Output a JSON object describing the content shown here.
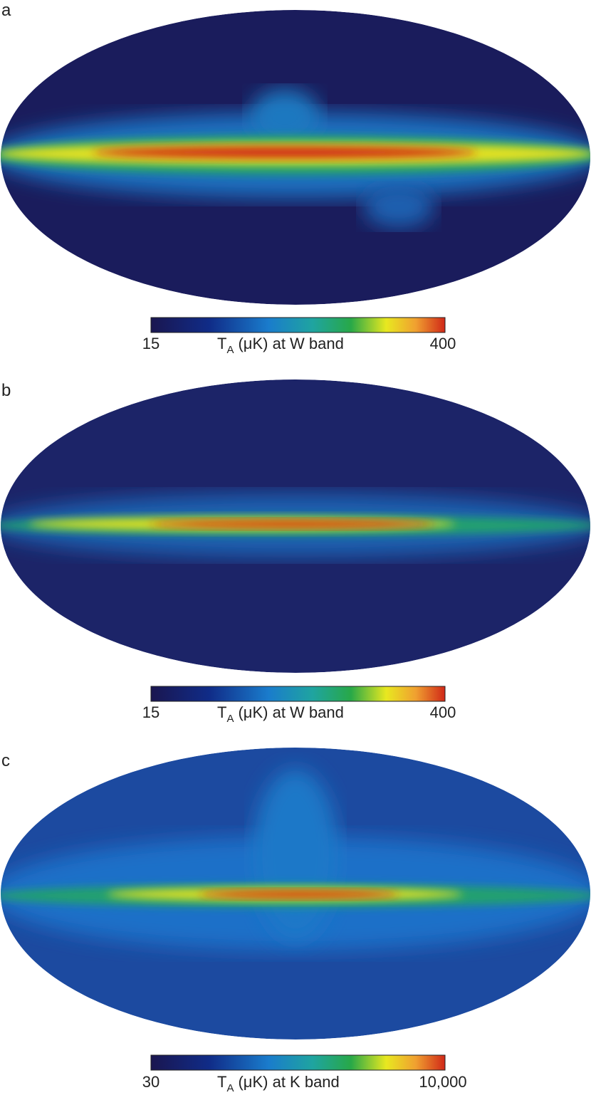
{
  "panels": [
    {
      "label": "a",
      "colorbar": {
        "min": "15",
        "max": "400",
        "symbol": "T",
        "subscript": "A",
        "rest": "(μK) at W band"
      }
    },
    {
      "label": "b",
      "colorbar": {
        "min": "15",
        "max": "400",
        "symbol": "T",
        "subscript": "A",
        "rest": "(μK) at W band"
      }
    },
    {
      "label": "c",
      "colorbar": {
        "min": "30",
        "max": "10,000",
        "symbol": "T",
        "subscript": "A",
        "rest": "(μK) at K band"
      }
    }
  ]
}
